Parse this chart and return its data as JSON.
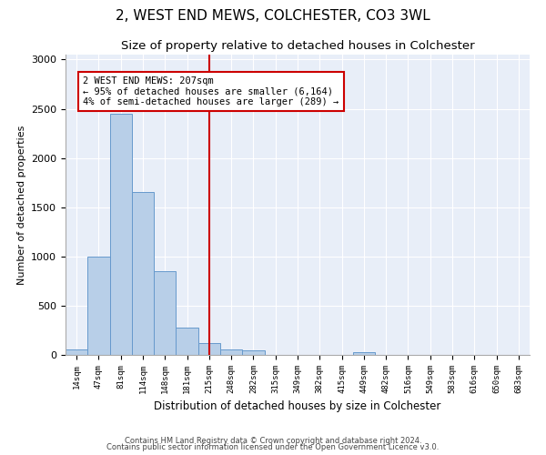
{
  "title1": "2, WEST END MEWS, COLCHESTER, CO3 3WL",
  "title2": "Size of property relative to detached houses in Colchester",
  "xlabel": "Distribution of detached houses by size in Colchester",
  "ylabel": "Number of detached properties",
  "categories": [
    "14sqm",
    "47sqm",
    "81sqm",
    "114sqm",
    "148sqm",
    "181sqm",
    "215sqm",
    "248sqm",
    "282sqm",
    "315sqm",
    "349sqm",
    "382sqm",
    "415sqm",
    "449sqm",
    "482sqm",
    "516sqm",
    "549sqm",
    "583sqm",
    "616sqm",
    "650sqm",
    "683sqm"
  ],
  "values": [
    55,
    1000,
    2450,
    1650,
    850,
    275,
    120,
    55,
    50,
    0,
    0,
    0,
    0,
    30,
    0,
    0,
    0,
    0,
    0,
    0,
    0
  ],
  "bar_color": "#b8cfe8",
  "bar_edge_color": "#6699cc",
  "vline_x": 6,
  "vline_color": "#cc0000",
  "annotation_text": "2 WEST END MEWS: 207sqm\n← 95% of detached houses are smaller (6,164)\n4% of semi-detached houses are larger (289) →",
  "annotation_box_color": "#cc0000",
  "ylim": [
    0,
    3050
  ],
  "yticks": [
    0,
    500,
    1000,
    1500,
    2000,
    2500,
    3000
  ],
  "footer1": "Contains HM Land Registry data © Crown copyright and database right 2024.",
  "footer2": "Contains public sector information licensed under the Open Government Licence v3.0.",
  "bg_color": "#e8eef8",
  "title1_fontsize": 11,
  "title2_fontsize": 9.5,
  "annotation_fontsize": 7.5
}
